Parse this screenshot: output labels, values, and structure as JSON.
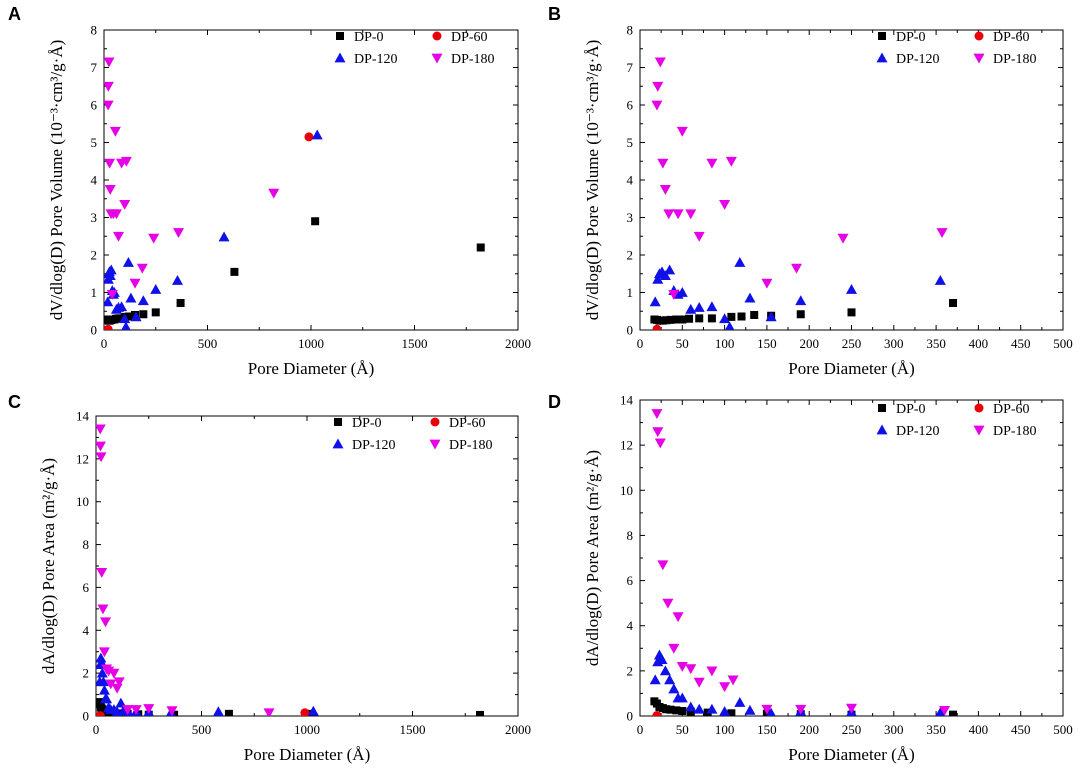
{
  "figure": {
    "legend_entries": [
      "DP-0",
      "DP-60",
      "DP-120",
      "DP-180"
    ],
    "colors": {
      "DP-0": "#000000",
      "DP-60": "#e8000b",
      "DP-120": "#1010e8",
      "DP-180": "#e600e6"
    }
  },
  "chart_data": [
    {
      "panel": "A",
      "type": "scatter",
      "xlabel": "Pore Diameter (Å)",
      "ylabel": "dV/dlog(D) Pore Volume (10⁻³·cm³/g·Å)",
      "xlim": [
        0,
        2000
      ],
      "ylim": [
        0,
        8
      ],
      "xticks": [
        0,
        500,
        1000,
        1500,
        2000
      ],
      "yticks": [
        0,
        1,
        2,
        3,
        4,
        5,
        6,
        7,
        8
      ],
      "legend": "top-right",
      "series": [
        {
          "name": "DP-0",
          "marker": "square",
          "points": [
            [
              17,
              0.28
            ],
            [
              20,
              0.27
            ],
            [
              23,
              0.25
            ],
            [
              27,
              0.25
            ],
            [
              31,
              0.26
            ],
            [
              36,
              0.27
            ],
            [
              43,
              0.28
            ],
            [
              50,
              0.28
            ],
            [
              58,
              0.3
            ],
            [
              70,
              0.31
            ],
            [
              85,
              0.31
            ],
            [
              100,
              0.35
            ],
            [
              120,
              0.36
            ],
            [
              150,
              0.4
            ],
            [
              190,
              0.42
            ],
            [
              250,
              0.47
            ],
            [
              370,
              0.72
            ],
            [
              630,
              1.55
            ],
            [
              1020,
              2.9
            ],
            [
              1820,
              2.2
            ]
          ]
        },
        {
          "name": "DP-60",
          "marker": "circle",
          "points": [
            [
              20,
              0.02
            ],
            [
              990,
              5.15
            ]
          ]
        },
        {
          "name": "DP-120",
          "marker": "triangle-up",
          "points": [
            [
              18,
              0.75
            ],
            [
              21,
              1.35
            ],
            [
              23,
              1.5
            ],
            [
              26,
              1.55
            ],
            [
              30,
              1.45
            ],
            [
              35,
              1.6
            ],
            [
              40,
              1.05
            ],
            [
              45,
              0.95
            ],
            [
              50,
              1.0
            ],
            [
              60,
              0.55
            ],
            [
              70,
              0.6
            ],
            [
              85,
              0.62
            ],
            [
              100,
              0.3
            ],
            [
              106,
              0.08
            ],
            [
              118,
              1.8
            ],
            [
              130,
              0.85
            ],
            [
              155,
              0.35
            ],
            [
              190,
              0.78
            ],
            [
              250,
              1.08
            ],
            [
              355,
              1.32
            ],
            [
              580,
              2.48
            ],
            [
              1030,
              5.2
            ]
          ]
        },
        {
          "name": "DP-180",
          "marker": "triangle-down",
          "points": [
            [
              20,
              6.0
            ],
            [
              21,
              6.5
            ],
            [
              24,
              7.15
            ],
            [
              27,
              4.45
            ],
            [
              30,
              3.75
            ],
            [
              34,
              3.1
            ],
            [
              40,
              0.95
            ],
            [
              45,
              3.1
            ],
            [
              55,
              5.3
            ],
            [
              60,
              3.1
            ],
            [
              70,
              2.5
            ],
            [
              85,
              4.45
            ],
            [
              100,
              3.35
            ],
            [
              108,
              4.5
            ],
            [
              150,
              1.25
            ],
            [
              185,
              1.65
            ],
            [
              240,
              2.45
            ],
            [
              360,
              2.6
            ],
            [
              820,
              3.65
            ]
          ]
        }
      ]
    },
    {
      "panel": "B",
      "type": "scatter",
      "xlabel": "Pore Diameter (Å)",
      "ylabel": "dV/dlog(D) Pore Volume (10⁻³·cm³/g·Å)",
      "xlim": [
        0,
        500
      ],
      "ylim": [
        0,
        8
      ],
      "xticks": [
        0,
        50,
        100,
        150,
        200,
        250,
        300,
        350,
        400,
        450,
        500
      ],
      "yticks": [
        0,
        1,
        2,
        3,
        4,
        5,
        6,
        7,
        8
      ],
      "legend": "top-right",
      "series": [
        {
          "name": "DP-0",
          "marker": "square",
          "points": [
            [
              17,
              0.28
            ],
            [
              20,
              0.27
            ],
            [
              23,
              0.25
            ],
            [
              27,
              0.25
            ],
            [
              31,
              0.26
            ],
            [
              36,
              0.27
            ],
            [
              43,
              0.28
            ],
            [
              50,
              0.28
            ],
            [
              58,
              0.3
            ],
            [
              70,
              0.31
            ],
            [
              85,
              0.31
            ],
            [
              108,
              0.35
            ],
            [
              120,
              0.36
            ],
            [
              135,
              0.4
            ],
            [
              155,
              0.38
            ],
            [
              190,
              0.42
            ],
            [
              250,
              0.47
            ],
            [
              370,
              0.72
            ]
          ]
        },
        {
          "name": "DP-60",
          "marker": "circle",
          "points": [
            [
              20,
              0.02
            ]
          ]
        },
        {
          "name": "DP-120",
          "marker": "triangle-up",
          "points": [
            [
              18,
              0.75
            ],
            [
              21,
              1.35
            ],
            [
              23,
              1.5
            ],
            [
              26,
              1.55
            ],
            [
              30,
              1.45
            ],
            [
              35,
              1.6
            ],
            [
              40,
              1.05
            ],
            [
              45,
              0.95
            ],
            [
              50,
              1.0
            ],
            [
              60,
              0.55
            ],
            [
              70,
              0.6
            ],
            [
              85,
              0.62
            ],
            [
              100,
              0.3
            ],
            [
              106,
              0.08
            ],
            [
              118,
              1.8
            ],
            [
              130,
              0.85
            ],
            [
              155,
              0.35
            ],
            [
              190,
              0.78
            ],
            [
              250,
              1.08
            ],
            [
              355,
              1.32
            ]
          ]
        },
        {
          "name": "DP-180",
          "marker": "triangle-down",
          "points": [
            [
              20,
              6.0
            ],
            [
              21,
              6.5
            ],
            [
              24,
              7.15
            ],
            [
              27,
              4.45
            ],
            [
              30,
              3.75
            ],
            [
              34,
              3.1
            ],
            [
              40,
              0.95
            ],
            [
              45,
              3.1
            ],
            [
              50,
              5.3
            ],
            [
              60,
              3.1
            ],
            [
              70,
              2.5
            ],
            [
              85,
              4.45
            ],
            [
              100,
              3.35
            ],
            [
              108,
              4.5
            ],
            [
              150,
              1.25
            ],
            [
              185,
              1.65
            ],
            [
              240,
              2.45
            ],
            [
              357,
              2.6
            ]
          ]
        }
      ]
    },
    {
      "panel": "C",
      "type": "scatter",
      "xlabel": "Pore Diameter (Å)",
      "ylabel": "dA/dlog(D) Pore Area (m²/g·Å)",
      "xlim": [
        0,
        2000
      ],
      "ylim": [
        0,
        14
      ],
      "xticks": [
        0,
        500,
        1000,
        1500,
        2000
      ],
      "yticks": [
        0,
        2,
        4,
        6,
        8,
        10,
        12,
        14
      ],
      "legend": "top-right",
      "series": [
        {
          "name": "DP-0",
          "marker": "square",
          "points": [
            [
              17,
              0.65
            ],
            [
              20,
              0.55
            ],
            [
              23,
              0.4
            ],
            [
              27,
              0.35
            ],
            [
              31,
              0.3
            ],
            [
              36,
              0.28
            ],
            [
              43,
              0.25
            ],
            [
              50,
              0.22
            ],
            [
              60,
              0.2
            ],
            [
              80,
              0.15
            ],
            [
              110,
              0.12
            ],
            [
              150,
              0.1
            ],
            [
              200,
              0.08
            ],
            [
              250,
              0.06
            ],
            [
              370,
              0.06
            ],
            [
              630,
              0.1
            ],
            [
              1020,
              0.1
            ],
            [
              1820,
              0.05
            ]
          ]
        },
        {
          "name": "DP-60",
          "marker": "circle",
          "points": [
            [
              20,
              0.02
            ],
            [
              990,
              0.15
            ]
          ]
        },
        {
          "name": "DP-120",
          "marker": "triangle-up",
          "points": [
            [
              18,
              1.6
            ],
            [
              21,
              2.4
            ],
            [
              23,
              2.7
            ],
            [
              26,
              2.5
            ],
            [
              30,
              2.0
            ],
            [
              35,
              1.6
            ],
            [
              40,
              1.2
            ],
            [
              45,
              0.8
            ],
            [
              50,
              0.8
            ],
            [
              60,
              0.4
            ],
            [
              70,
              0.3
            ],
            [
              85,
              0.3
            ],
            [
              100,
              0.2
            ],
            [
              118,
              0.6
            ],
            [
              130,
              0.25
            ],
            [
              155,
              0.12
            ],
            [
              190,
              0.2
            ],
            [
              250,
              0.18
            ],
            [
              355,
              0.15
            ],
            [
              580,
              0.2
            ],
            [
              1030,
              0.22
            ]
          ]
        },
        {
          "name": "DP-180",
          "marker": "triangle-down",
          "points": [
            [
              20,
              13.4
            ],
            [
              21,
              12.6
            ],
            [
              24,
              12.1
            ],
            [
              27,
              6.7
            ],
            [
              33,
              5.0
            ],
            [
              40,
              3.0
            ],
            [
              45,
              4.4
            ],
            [
              50,
              2.2
            ],
            [
              60,
              2.1
            ],
            [
              70,
              1.5
            ],
            [
              85,
              2.0
            ],
            [
              100,
              1.3
            ],
            [
              110,
              1.6
            ],
            [
              150,
              0.3
            ],
            [
              190,
              0.3
            ],
            [
              250,
              0.35
            ],
            [
              360,
              0.25
            ],
            [
              820,
              0.15
            ]
          ]
        }
      ]
    },
    {
      "panel": "D",
      "type": "scatter",
      "xlabel": "Pore Diameter (Å)",
      "ylabel": "dA/dlog(D) Pore Area (m²/g·Å)",
      "xlim": [
        0,
        500
      ],
      "ylim": [
        0,
        14
      ],
      "xticks": [
        0,
        50,
        100,
        150,
        200,
        250,
        300,
        350,
        400,
        450,
        500
      ],
      "yticks": [
        0,
        2,
        4,
        6,
        8,
        10,
        12,
        14
      ],
      "legend": "top-right",
      "series": [
        {
          "name": "DP-0",
          "marker": "square",
          "points": [
            [
              17,
              0.65
            ],
            [
              20,
              0.55
            ],
            [
              23,
              0.4
            ],
            [
              27,
              0.35
            ],
            [
              31,
              0.3
            ],
            [
              36,
              0.28
            ],
            [
              43,
              0.25
            ],
            [
              50,
              0.22
            ],
            [
              60,
              0.2
            ],
            [
              80,
              0.15
            ],
            [
              108,
              0.12
            ],
            [
              150,
              0.1
            ],
            [
              190,
              0.08
            ],
            [
              250,
              0.06
            ],
            [
              370,
              0.06
            ]
          ]
        },
        {
          "name": "DP-60",
          "marker": "circle",
          "points": [
            [
              20,
              0.02
            ]
          ]
        },
        {
          "name": "DP-120",
          "marker": "triangle-up",
          "points": [
            [
              18,
              1.6
            ],
            [
              21,
              2.4
            ],
            [
              23,
              2.7
            ],
            [
              26,
              2.5
            ],
            [
              30,
              2.0
            ],
            [
              35,
              1.6
            ],
            [
              40,
              1.2
            ],
            [
              45,
              0.8
            ],
            [
              50,
              0.8
            ],
            [
              60,
              0.4
            ],
            [
              70,
              0.3
            ],
            [
              85,
              0.3
            ],
            [
              100,
              0.2
            ],
            [
              118,
              0.6
            ],
            [
              130,
              0.25
            ],
            [
              155,
              0.12
            ],
            [
              190,
              0.2
            ],
            [
              250,
              0.18
            ],
            [
              355,
              0.15
            ]
          ]
        },
        {
          "name": "DP-180",
          "marker": "triangle-down",
          "points": [
            [
              20,
              13.4
            ],
            [
              21,
              12.6
            ],
            [
              24,
              12.1
            ],
            [
              27,
              6.7
            ],
            [
              33,
              5.0
            ],
            [
              40,
              3.0
            ],
            [
              45,
              4.4
            ],
            [
              50,
              2.2
            ],
            [
              60,
              2.1
            ],
            [
              70,
              1.5
            ],
            [
              85,
              2.0
            ],
            [
              100,
              1.3
            ],
            [
              110,
              1.6
            ],
            [
              150,
              0.3
            ],
            [
              190,
              0.3
            ],
            [
              250,
              0.35
            ],
            [
              360,
              0.25
            ]
          ]
        }
      ]
    }
  ]
}
